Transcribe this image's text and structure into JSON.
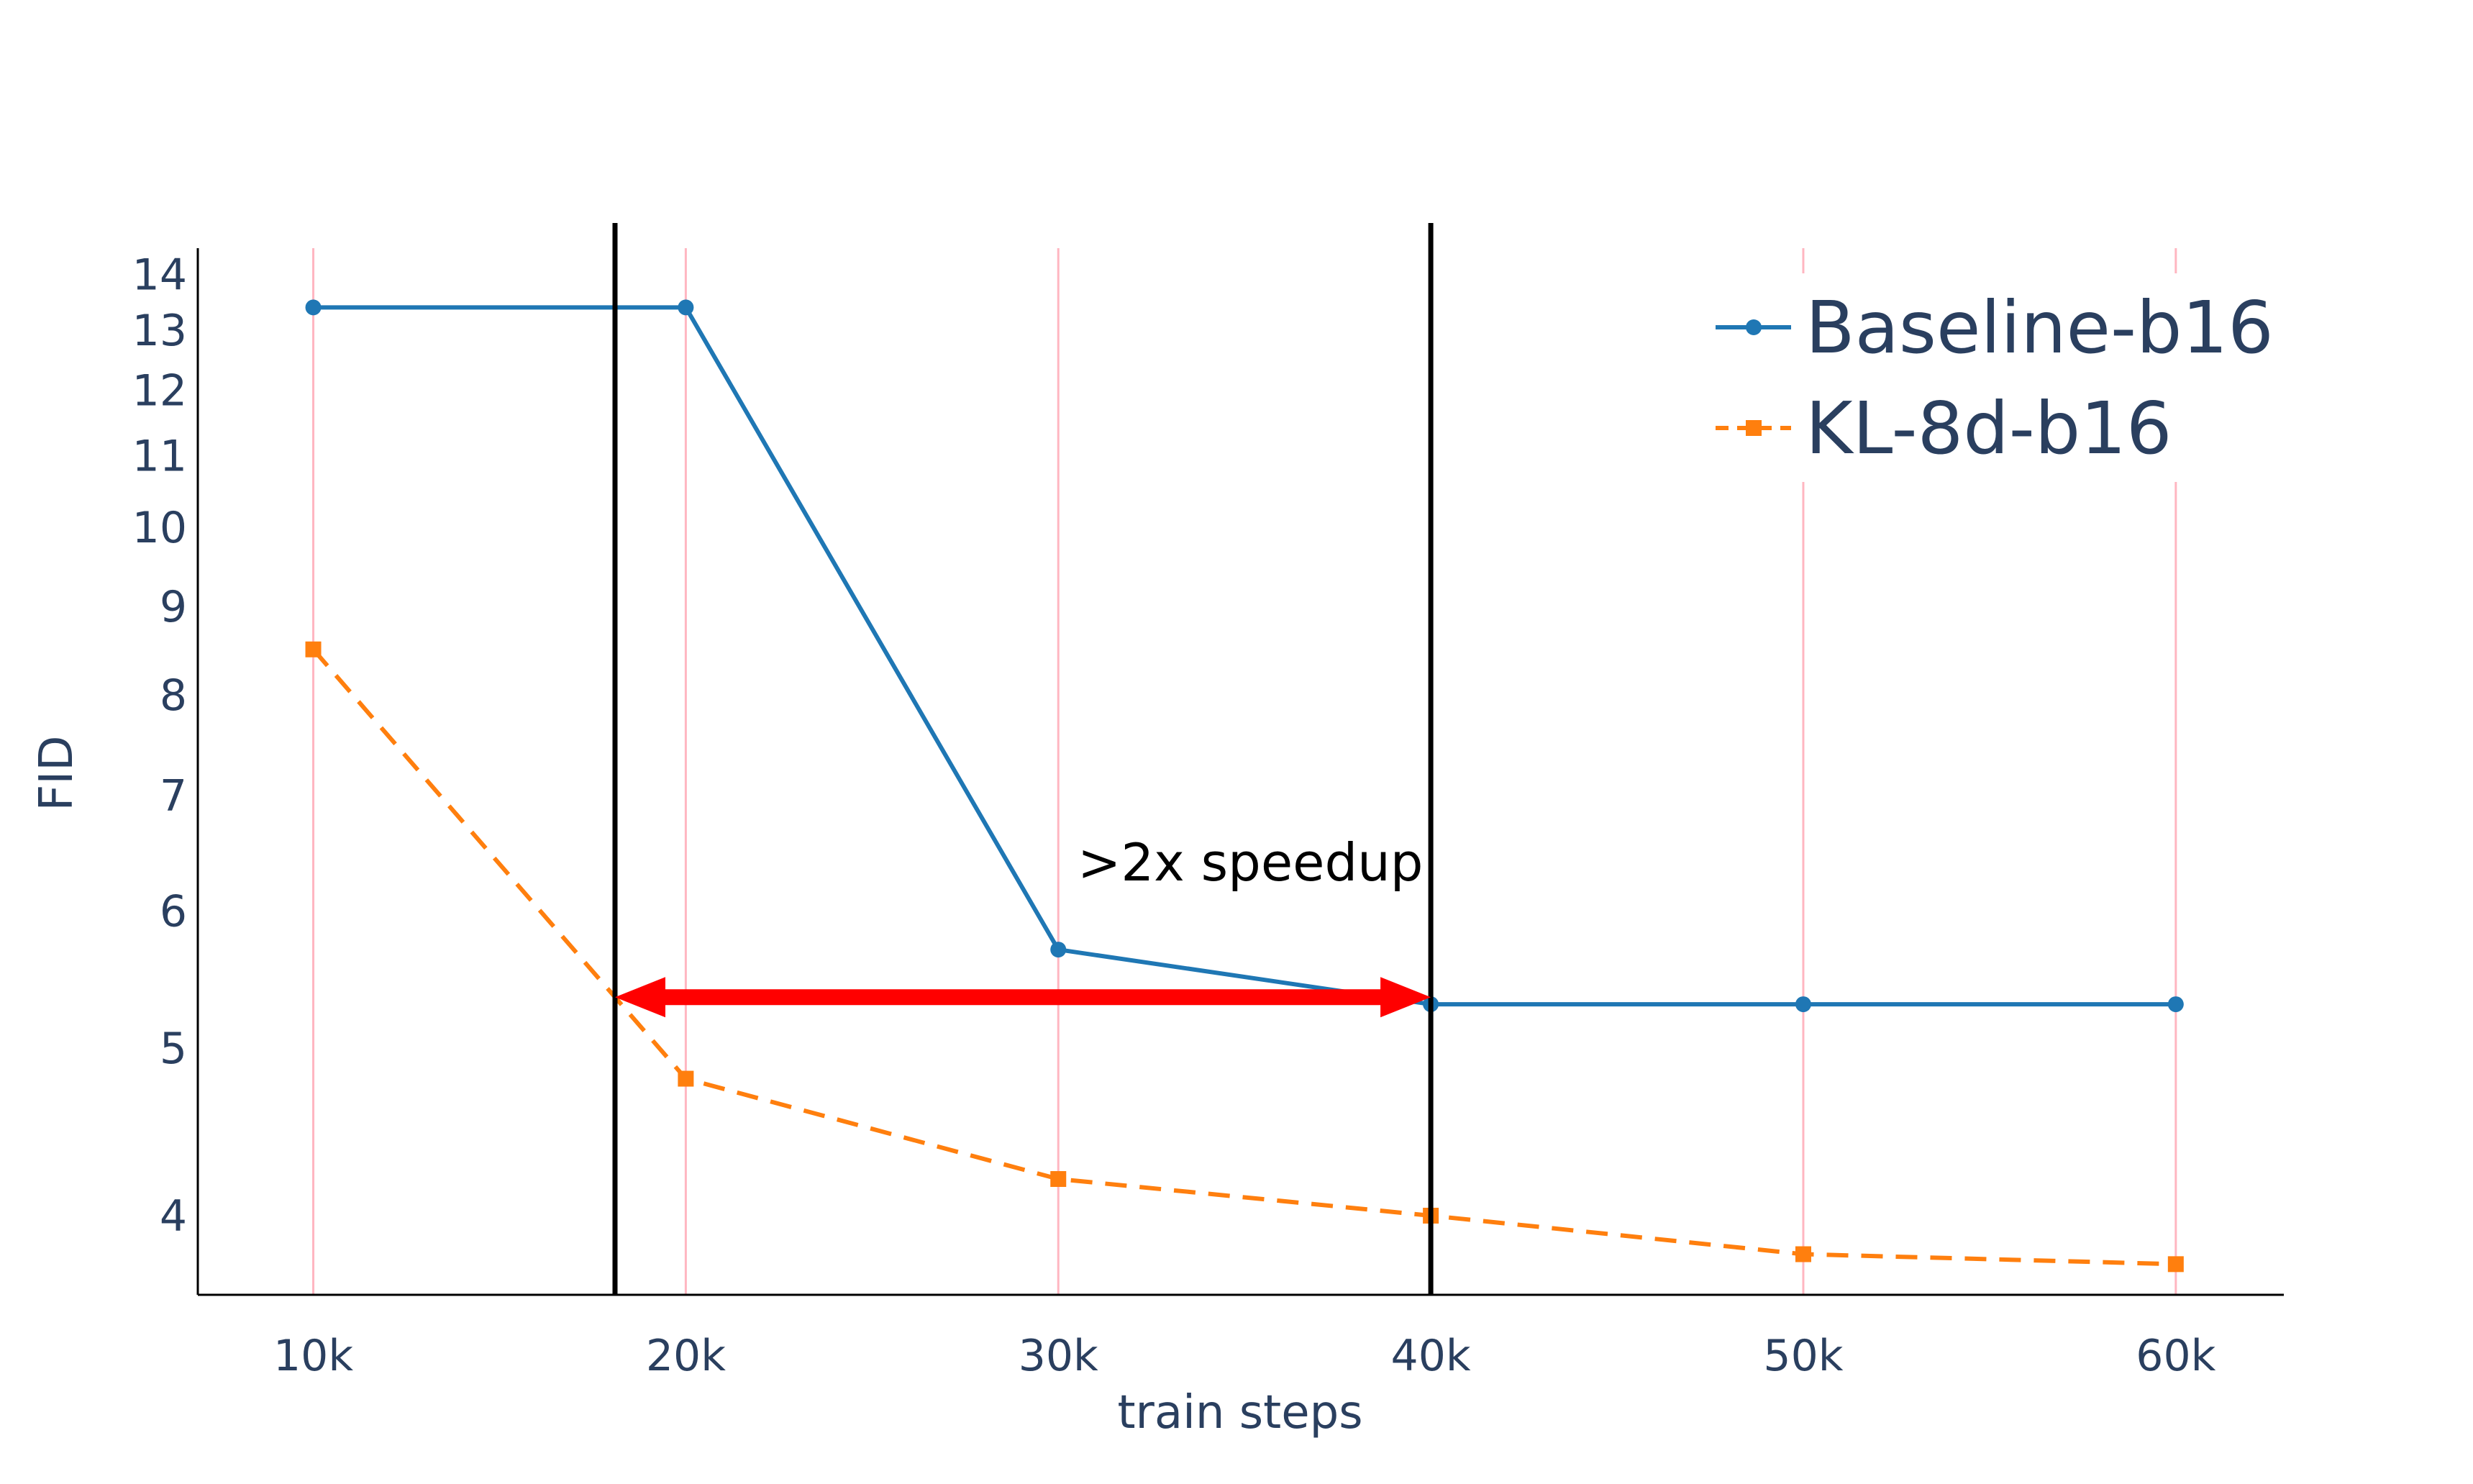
{
  "chart_data": {
    "type": "line",
    "title": "",
    "xlabel": "train steps",
    "ylabel": "FID",
    "x_scale": "linear",
    "y_scale": "log",
    "xlim": [
      6.9,
      62.9
    ],
    "ylim": [
      3.6,
      14.5
    ],
    "x": [
      10,
      20,
      30,
      40,
      50,
      60
    ],
    "x_tick_values": [
      10,
      20,
      30,
      40,
      50,
      60
    ],
    "x_tick_labels": [
      "10k",
      "20k",
      "30k",
      "40k",
      "50k",
      "60k"
    ],
    "y_tick_values": [
      4,
      5,
      6,
      7,
      8,
      9,
      10,
      11,
      12,
      13,
      14
    ],
    "y_tick_labels": [
      "4",
      "5",
      "6",
      "7",
      "8",
      "9",
      "10",
      "11",
      "12",
      "13",
      "14"
    ],
    "grid": "vertical",
    "grid_color": "#ffb6c1",
    "legend_position": "top-right",
    "series": [
      {
        "name": "Baseline-b16",
        "color": "#1f77b4",
        "dash": "solid",
        "marker": "circle",
        "values": [
          13.4,
          13.4,
          5.7,
          5.3,
          5.3,
          5.3
        ]
      },
      {
        "name": "KL-8d-b16",
        "color": "#ff7f0e",
        "dash": "dash",
        "marker": "square",
        "values": [
          8.5,
          4.8,
          4.2,
          4.0,
          3.8,
          3.75
        ]
      }
    ],
    "vertical_lines": [
      {
        "x": 18.1,
        "color": "#000000"
      },
      {
        "x": 40.0,
        "color": "#000000"
      }
    ],
    "arrow": {
      "x_start": 18.1,
      "x_end": 40.0,
      "y": 5.35,
      "color": "#ff0000",
      "direction": "both"
    },
    "annotation": {
      "text": ">2x speedup",
      "x": 35,
      "y": 6.25
    }
  }
}
